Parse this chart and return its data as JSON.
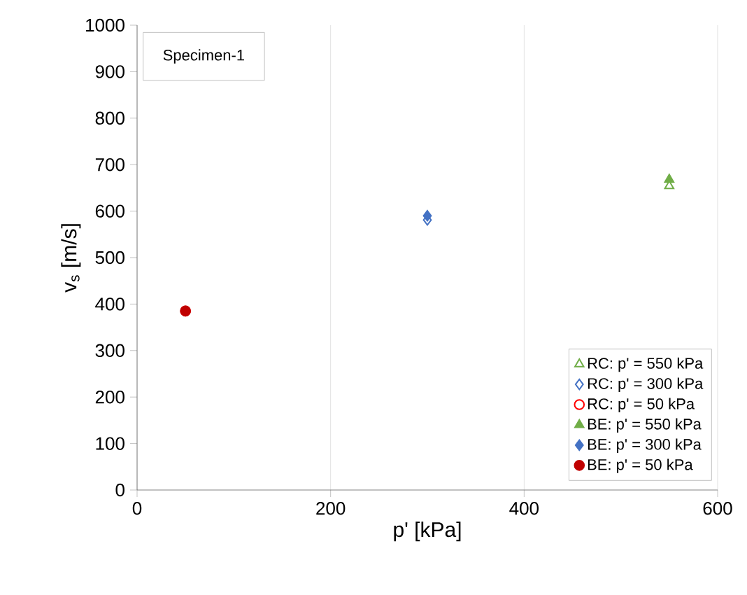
{
  "chart_data": {
    "type": "scatter",
    "xlabel": "p' [kPa]",
    "ylabel": "v$_{s}$ [m/s]",
    "annotations": [
      "Specimen-1"
    ],
    "xlim": [
      0,
      600
    ],
    "xticks": [
      0,
      200,
      400,
      600
    ],
    "ylim": [
      0,
      1000
    ],
    "yticks": [
      0,
      100,
      200,
      300,
      400,
      500,
      600,
      700,
      800,
      900,
      1000
    ],
    "grid": "x",
    "legend": "bottom right",
    "series": [
      {
        "name": "RC: p' =  550 kPa",
        "color": "#70ad47",
        "marker": "triangle",
        "x": [
          550
        ],
        "values": [
          654
        ]
      },
      {
        "name": "RC: p' =  300 kPa",
        "color": "#4472c4",
        "marker": "diamond",
        "x": [
          300
        ],
        "values": [
          581
        ]
      },
      {
        "name": "RC: p' =  50 kPa",
        "color": "#ff0000",
        "marker": "circle",
        "x": [
          50
        ],
        "values": [
          385
        ]
      },
      {
        "name": "BE: p' =  550 kPa",
        "color": "#70ad47",
        "marker": "triangle",
        "x": [
          550
        ],
        "values": [
          668
        ]
      },
      {
        "name": "BE: p' =  300 kPa",
        "color": "#4472c4",
        "marker": "diamond",
        "x": [
          300
        ],
        "values": [
          590
        ]
      },
      {
        "name": "BE: p' =  50 kPa",
        "color": "#c00000",
        "marker": "circle",
        "x": [
          50
        ],
        "values": [
          385
        ]
      }
    ]
  }
}
